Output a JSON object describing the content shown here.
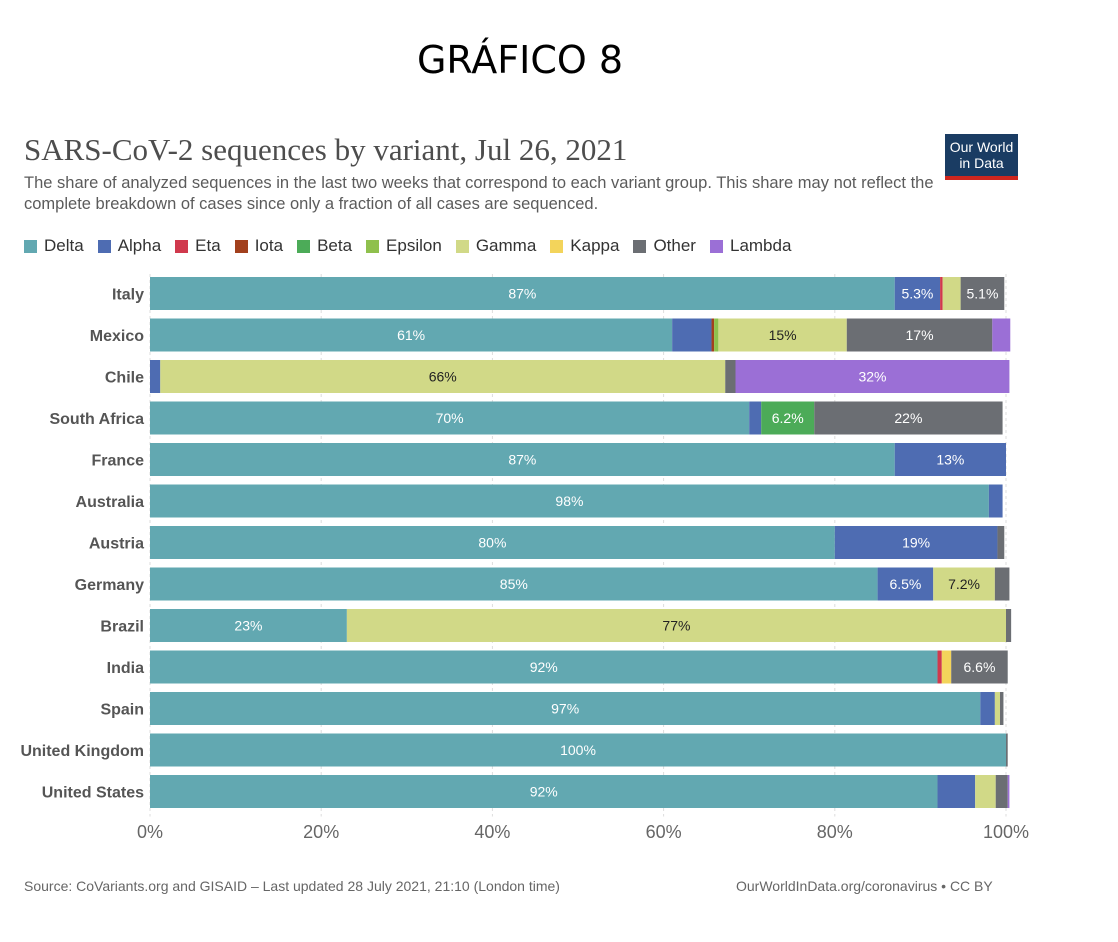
{
  "header": {
    "title": "GRÁFICO 8"
  },
  "logo": {
    "line1": "Our World",
    "line2": "in Data"
  },
  "footer": {
    "source": "Source: CoVariants.org and GISAID – Last updated 28 July 2021, 21:10 (London time)",
    "credit": "OurWorldInData.org/coronavirus • CC BY"
  },
  "chart_data": {
    "type": "bar",
    "orientation": "horizontal",
    "stacked": true,
    "title": "SARS-CoV-2 sequences by variant, Jul 26, 2021",
    "subtitle": "The share of analyzed sequences in the last two weeks that correspond to each variant group. This share may not reflect the complete breakdown of cases since only a fraction of all cases are sequenced.",
    "xlim": [
      0,
      100
    ],
    "x_ticks": [
      "0%",
      "20%",
      "40%",
      "60%",
      "80%",
      "100%"
    ],
    "legend_position": "top-left",
    "grid": true,
    "categories": [
      "Italy",
      "Mexico",
      "Chile",
      "South Africa",
      "France",
      "Australia",
      "Austria",
      "Germany",
      "Brazil",
      "India",
      "Spain",
      "United Kingdom",
      "United States"
    ],
    "series": [
      {
        "name": "Delta",
        "color": "#62a8b1",
        "values": [
          87,
          61,
          0,
          70,
          87,
          98,
          80,
          85,
          23,
          92,
          97,
          100,
          92
        ]
      },
      {
        "name": "Alpha",
        "color": "#4e6cb2",
        "values": [
          5.3,
          4.6,
          1.2,
          1.4,
          13,
          1.6,
          19,
          6.5,
          0,
          0,
          1.7,
          0,
          4.4
        ]
      },
      {
        "name": "Eta",
        "color": "#d0394d",
        "values": [
          0.3,
          0,
          0,
          0,
          0,
          0,
          0,
          0,
          0,
          0.5,
          0,
          0,
          0
        ]
      },
      {
        "name": "Iota",
        "color": "#a2401d",
        "values": [
          0,
          0.3,
          0,
          0,
          0,
          0,
          0,
          0,
          0,
          0,
          0,
          0,
          0
        ]
      },
      {
        "name": "Beta",
        "color": "#4cab58",
        "values": [
          0,
          0,
          0,
          6.2,
          0,
          0,
          0,
          0,
          0,
          0,
          0,
          0,
          0
        ]
      },
      {
        "name": "Epsilon",
        "color": "#8fc04d",
        "values": [
          0,
          0.5,
          0,
          0,
          0,
          0,
          0,
          0,
          0,
          0,
          0,
          0,
          0
        ]
      },
      {
        "name": "Gamma",
        "color": "#d1d987",
        "values": [
          2.1,
          15,
          66,
          0,
          0,
          0,
          0,
          7.2,
          77,
          0,
          0.6,
          0,
          2.4
        ]
      },
      {
        "name": "Kappa",
        "color": "#f3d45b",
        "values": [
          0,
          0,
          0,
          0,
          0,
          0,
          0,
          0,
          0,
          1.1,
          0,
          0,
          0
        ]
      },
      {
        "name": "Other",
        "color": "#6b6e73",
        "values": [
          5.1,
          17,
          1.2,
          22,
          0,
          0,
          0.8,
          1.7,
          0.6,
          6.6,
          0.4,
          0.2,
          1.4
        ]
      },
      {
        "name": "Lambda",
        "color": "#9b6fd6",
        "values": [
          0,
          2.1,
          32,
          0,
          0,
          0,
          0,
          0,
          0,
          0,
          0,
          0,
          0.2
        ]
      }
    ],
    "data_labels": [
      [
        "87%",
        "5.3%",
        "",
        "",
        "",
        "",
        "",
        "",
        "5.1%",
        ""
      ],
      [
        "61%",
        "",
        "",
        "",
        "",
        "",
        "15%",
        "",
        "17%",
        ""
      ],
      [
        "",
        "",
        "",
        "",
        "",
        "",
        "66%",
        "",
        "",
        "32%"
      ],
      [
        "70%",
        "",
        "",
        "",
        "6.2%",
        "",
        "",
        "",
        "22%",
        ""
      ],
      [
        "87%",
        "13%",
        "",
        "",
        "",
        "",
        "",
        "",
        "",
        ""
      ],
      [
        "98%",
        "",
        "",
        "",
        "",
        "",
        "",
        "",
        "",
        ""
      ],
      [
        "80%",
        "19%",
        "",
        "",
        "",
        "",
        "",
        "",
        "",
        ""
      ],
      [
        "85%",
        "6.5%",
        "",
        "",
        "",
        "",
        "7.2%",
        "",
        "",
        ""
      ],
      [
        "23%",
        "",
        "",
        "",
        "",
        "",
        "77%",
        "",
        "",
        ""
      ],
      [
        "92%",
        "",
        "",
        "",
        "",
        "",
        "",
        "",
        "6.6%",
        ""
      ],
      [
        "97%",
        "",
        "",
        "",
        "",
        "",
        "",
        "",
        "",
        ""
      ],
      [
        "100%",
        "",
        "",
        "",
        "",
        "",
        "",
        "",
        "",
        ""
      ],
      [
        "92%",
        "",
        "",
        "",
        "",
        "",
        "",
        "",
        "",
        ""
      ]
    ]
  }
}
